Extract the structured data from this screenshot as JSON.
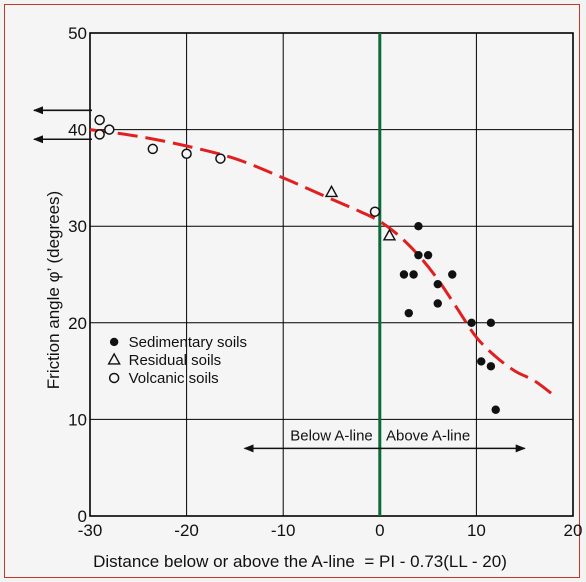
{
  "colors": {
    "frame": "#c0392b",
    "background": "#f5f5f5",
    "grid": "#000000",
    "a_line": "#0b6b3a",
    "trend": "#e02020",
    "markers": "#111111"
  },
  "chart_data": {
    "type": "scatter",
    "xlabel": "Distance below or above the A-line  = PI - 0.73(LL - 20)",
    "ylabel": "Friction angle φ’ (degrees)",
    "xlim": [
      -30,
      20
    ],
    "ylim": [
      0,
      50
    ],
    "x_ticks": [
      "-30",
      "-20",
      "-10",
      "0",
      "10",
      "20"
    ],
    "y_ticks": [
      "0",
      "10",
      "20",
      "30",
      "40",
      "50"
    ],
    "grid": true,
    "legend_position": "lower-left",
    "series": [
      {
        "name": "Sedimentary soils",
        "marker": "filled-circle",
        "x": [
          4,
          2.5,
          4,
          5,
          3.5,
          7.5,
          6,
          3,
          6,
          9.5,
          11.5,
          10.5,
          11.5,
          12
        ],
        "y": [
          30,
          25,
          27,
          27,
          25,
          25,
          24,
          21,
          22,
          20,
          20,
          16,
          15.5,
          11
        ]
      },
      {
        "name": "Residual soils",
        "marker": "open-triangle",
        "x": [
          -5,
          1
        ],
        "y": [
          33.5,
          29
        ]
      },
      {
        "name": "Volcanic soils",
        "marker": "open-circle",
        "x": [
          -29,
          -29,
          -28,
          -23.5,
          -20,
          -16.5,
          -0.5
        ],
        "y": [
          41,
          39.5,
          40,
          38,
          37.5,
          37,
          31.5
        ]
      }
    ],
    "trend_line": {
      "style": "dashed",
      "x": [
        -30,
        -25,
        -20,
        -15,
        -10,
        -5,
        -2,
        0,
        2,
        4,
        6,
        8,
        10,
        12,
        14,
        16,
        18
      ],
      "y": [
        40,
        39.3,
        38.3,
        37,
        35,
        32.8,
        31.5,
        30.5,
        29,
        27,
        24.5,
        21.5,
        18.5,
        16.5,
        15,
        14,
        12.5
      ]
    },
    "a_line_x": 0,
    "left_arrows_y": [
      42,
      39
    ],
    "region_annotations": [
      {
        "text": "Below A-line",
        "arrow_from": 0,
        "arrow_to": -14,
        "y": 7
      },
      {
        "text": "Above A-line",
        "arrow_from": 0,
        "arrow_to": 15,
        "y": 7
      }
    ]
  }
}
